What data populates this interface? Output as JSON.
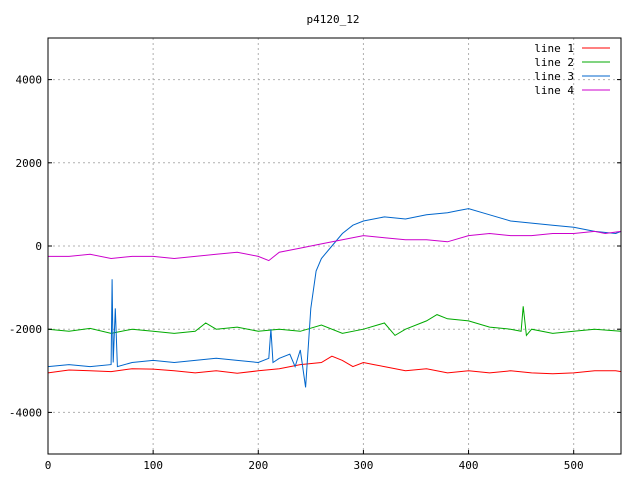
{
  "chart_data": {
    "type": "line",
    "title": "p4120_12",
    "xlabel": "",
    "ylabel": "",
    "xlim": [
      0,
      545
    ],
    "ylim": [
      -5000,
      5000
    ],
    "xticks": [
      0,
      100,
      200,
      300,
      400,
      500
    ],
    "yticks": [
      -4000,
      -2000,
      0,
      2000,
      4000
    ],
    "grid": true,
    "legend_position": "top-right",
    "series": [
      {
        "name": "line 1",
        "color": "#ff0000",
        "x": [
          0,
          20,
          40,
          60,
          80,
          100,
          120,
          140,
          160,
          180,
          200,
          220,
          240,
          260,
          270,
          280,
          290,
          300,
          310,
          320,
          340,
          360,
          380,
          400,
          420,
          440,
          460,
          480,
          500,
          520,
          540,
          545
        ],
        "y": [
          -3050,
          -2980,
          -3000,
          -3020,
          -2950,
          -2960,
          -3000,
          -3050,
          -3000,
          -3060,
          -3000,
          -2950,
          -2850,
          -2800,
          -2650,
          -2750,
          -2900,
          -2800,
          -2850,
          -2900,
          -3000,
          -2950,
          -3050,
          -3000,
          -3050,
          -3000,
          -3050,
          -3070,
          -3050,
          -3000,
          -3000,
          -3020
        ]
      },
      {
        "name": "line 2",
        "color": "#00aa00",
        "x": [
          0,
          20,
          40,
          60,
          80,
          100,
          120,
          140,
          150,
          160,
          180,
          200,
          220,
          240,
          260,
          280,
          300,
          320,
          330,
          340,
          360,
          370,
          380,
          400,
          420,
          440,
          450,
          452,
          455,
          460,
          480,
          500,
          520,
          545
        ],
        "y": [
          -2000,
          -2050,
          -1980,
          -2100,
          -2000,
          -2050,
          -2100,
          -2050,
          -1850,
          -2000,
          -1950,
          -2050,
          -2000,
          -2050,
          -1900,
          -2100,
          -2000,
          -1850,
          -2150,
          -2000,
          -1800,
          -1650,
          -1750,
          -1800,
          -1950,
          -2000,
          -2050,
          -1450,
          -2150,
          -2000,
          -2100,
          -2050,
          -2000,
          -2050
        ]
      },
      {
        "name": "line 3",
        "color": "#0066cc",
        "x": [
          0,
          20,
          40,
          60,
          61,
          62,
          64,
          66,
          80,
          100,
          120,
          140,
          160,
          180,
          200,
          210,
          212,
          214,
          220,
          230,
          235,
          240,
          245,
          250,
          255,
          260,
          270,
          280,
          290,
          300,
          320,
          340,
          360,
          380,
          390,
          400,
          420,
          440,
          460,
          480,
          500,
          520,
          540,
          545
        ],
        "y": [
          -2900,
          -2850,
          -2900,
          -2850,
          -800,
          -2800,
          -1500,
          -2900,
          -2800,
          -2750,
          -2800,
          -2750,
          -2700,
          -2750,
          -2800,
          -2700,
          -2000,
          -2800,
          -2700,
          -2600,
          -2900,
          -2500,
          -3400,
          -1500,
          -600,
          -300,
          0,
          300,
          500,
          600,
          700,
          650,
          750,
          800,
          850,
          900,
          750,
          600,
          550,
          500,
          450,
          350,
          300,
          350
        ]
      },
      {
        "name": "line 4",
        "color": "#cc00cc",
        "x": [
          0,
          20,
          40,
          60,
          80,
          100,
          120,
          140,
          160,
          180,
          200,
          210,
          220,
          240,
          260,
          280,
          300,
          320,
          340,
          360,
          380,
          400,
          420,
          440,
          460,
          480,
          500,
          520,
          530,
          545
        ],
        "y": [
          -250,
          -250,
          -200,
          -300,
          -250,
          -250,
          -300,
          -250,
          -200,
          -150,
          -250,
          -350,
          -150,
          -50,
          50,
          150,
          250,
          200,
          150,
          150,
          100,
          250,
          300,
          250,
          250,
          300,
          300,
          350,
          300,
          350
        ]
      }
    ]
  }
}
